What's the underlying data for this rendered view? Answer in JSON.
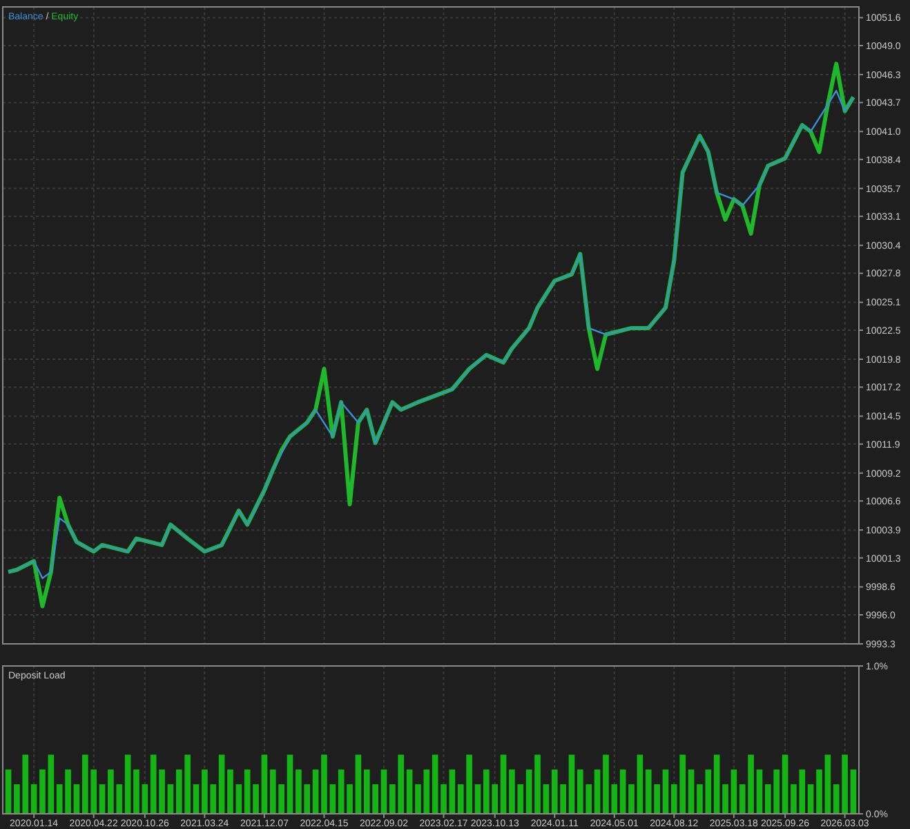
{
  "chart_data": [
    {
      "type": "line",
      "legend": "top left",
      "grid": true,
      "tick_labels": "y",
      "annotations": [
        "/"
      ],
      "ylim": [
        9993.3,
        10052.6
      ],
      "categories": [
        null,
        null,
        null,
        "2020.01.14",
        null,
        null,
        null,
        null,
        null,
        null,
        "2020.04.22",
        null,
        null,
        null,
        null,
        null,
        "2020.10.26",
        null,
        null,
        null,
        null,
        null,
        null,
        "2021.03.24",
        null,
        null,
        null,
        null,
        null,
        null,
        "2021.12.07",
        null,
        null,
        null,
        null,
        null,
        null,
        "2022.04.15",
        null,
        null,
        null,
        null,
        null,
        null,
        "2022.09.02",
        null,
        null,
        null,
        null,
        null,
        null,
        "2023.02.17",
        null,
        null,
        null,
        null,
        null,
        "2023.10.13",
        null,
        null,
        null,
        null,
        null,
        null,
        "2024.01.11",
        null,
        null,
        null,
        null,
        null,
        null,
        "2024.05.01",
        null,
        null,
        null,
        null,
        null,
        null,
        "2024.08.12",
        null,
        null,
        null,
        null,
        null,
        null,
        "2025.03.18",
        null,
        null,
        null,
        null,
        null,
        "2025.09.26",
        null,
        null,
        null,
        null,
        null,
        null,
        "2026.03.03",
        null
      ],
      "yticks": [
        9993.3,
        {
          "value": 9996.0,
          "label": "9996.0"
        },
        9998.6,
        10001.3,
        10003.9,
        10006.6,
        10009.2,
        10011.9,
        10014.5,
        10017.2,
        10019.8,
        10022.5,
        10025.1,
        10027.8,
        10030.4,
        10033.1,
        10035.7,
        10038.4,
        {
          "value": 10041.0,
          "label": "10041.0"
        },
        10043.7,
        10046.3,
        {
          "value": 10049.0,
          "label": "10049.0"
        },
        10051.6
      ],
      "series": [
        {
          "name": "Balance",
          "color": "#3a8fd6",
          "values": [
            10000.0,
            10000.2,
            null,
            10001.0,
            9999.4,
            10000.0,
            10005.0,
            10004.4,
            10002.8,
            null,
            10001.9,
            10002.5,
            null,
            null,
            10001.9,
            10003.1,
            null,
            null,
            10002.5,
            10004.4,
            null,
            10003.1,
            null,
            10001.9,
            null,
            10002.5,
            null,
            10005.7,
            10004.4,
            null,
            10007.6,
            10009.5,
            null,
            10012.6,
            null,
            10013.9,
            10015.1,
            null,
            10012.6,
            10015.8,
            null,
            10013.9,
            10015.1,
            10012.0,
            null,
            10015.8,
            10015.1,
            null,
            10015.8,
            null,
            10016.4,
            null,
            10017.0,
            null,
            10018.9,
            null,
            10020.2,
            null,
            10019.5,
            10020.8,
            null,
            10022.7,
            10024.6,
            null,
            10027.1,
            null,
            10027.7,
            10029.6,
            10022.7,
            null,
            10022.1,
            null,
            null,
            10022.7,
            null,
            10022.7,
            null,
            10024.6,
            10029.0,
            10037.2,
            null,
            10040.6,
            10039.1,
            10035.3,
            null,
            10034.7,
            10034.1,
            null,
            10036.0,
            10037.8,
            null,
            10038.5,
            null,
            10041.6,
            10041.0,
            null,
            10043.5,
            10044.8,
            10042.9,
            10044.2
          ]
        },
        {
          "name": "Equity",
          "color": "#1fb82a",
          "values": [
            10000.0,
            10000.2,
            null,
            10001.0,
            9996.8,
            10000.0,
            10006.9,
            10004.4,
            10002.8,
            null,
            10001.9,
            10002.5,
            null,
            null,
            10001.9,
            10003.1,
            null,
            null,
            10002.5,
            10004.4,
            null,
            10003.1,
            null,
            10001.9,
            null,
            10002.5,
            null,
            10005.7,
            10004.4,
            null,
            10007.6,
            10009.5,
            10011.3,
            10012.6,
            null,
            10013.9,
            10015.1,
            10018.9,
            10012.6,
            10015.8,
            10006.3,
            10013.9,
            10015.1,
            10012.0,
            null,
            10015.8,
            10015.1,
            null,
            10015.8,
            null,
            10016.4,
            null,
            10017.0,
            null,
            10018.9,
            null,
            10020.2,
            null,
            10019.5,
            10020.8,
            null,
            10022.7,
            10024.6,
            null,
            10027.1,
            null,
            10027.7,
            10029.6,
            10022.7,
            10018.9,
            10022.1,
            null,
            null,
            10022.7,
            null,
            10022.7,
            null,
            10024.6,
            10029.0,
            10037.2,
            null,
            10040.6,
            10039.1,
            10035.3,
            10032.8,
            10034.7,
            10034.1,
            10031.5,
            10036.0,
            10037.8,
            null,
            10038.5,
            null,
            10041.6,
            10041.0,
            10039.1,
            10043.5,
            10047.3,
            10042.9,
            10044.2
          ]
        }
      ]
    },
    {
      "type": "bar",
      "title": "Deposit Load",
      "grid": "x",
      "ylim": [
        0,
        1
      ],
      "color": "#13b413",
      "categories": [
        null,
        null,
        null,
        "2020.01.14",
        null,
        null,
        null,
        null,
        null,
        null,
        "2020.04.22",
        null,
        null,
        null,
        null,
        null,
        "2020.10.26",
        null,
        null,
        null,
        null,
        null,
        null,
        "2021.03.24",
        null,
        null,
        null,
        null,
        null,
        null,
        "2021.12.07",
        null,
        null,
        null,
        null,
        null,
        null,
        "2022.04.15",
        null,
        null,
        null,
        null,
        null,
        null,
        "2022.09.02",
        null,
        null,
        null,
        null,
        null,
        null,
        "2023.02.17",
        null,
        null,
        null,
        null,
        null,
        "2023.10.13",
        null,
        null,
        null,
        null,
        null,
        null,
        "2024.01.11",
        null,
        null,
        null,
        null,
        null,
        null,
        "2024.05.01",
        null,
        null,
        null,
        null,
        null,
        null,
        "2024.08.12",
        null,
        null,
        null,
        null,
        null,
        null,
        "2025.03.18",
        null,
        null,
        null,
        null,
        null,
        "2025.09.26",
        null,
        null,
        null,
        null,
        null,
        null,
        "2026.03.03",
        null
      ],
      "yticks": [
        {
          "value": 0,
          "label": "0.0%"
        },
        {
          "value": 1,
          "label": "1.0%"
        }
      ],
      "values": [
        0.3,
        0.2,
        0.4,
        0.2,
        0.3,
        0.4,
        0.2,
        0.3,
        0.2,
        0.4,
        0.3,
        0.2,
        0.3,
        0.2,
        0.4,
        0.3,
        0.2,
        0.4,
        0.3,
        0.2,
        0.3,
        0.4,
        0.2,
        0.3,
        0.2,
        0.4,
        0.3,
        0.2,
        0.3,
        0.2,
        0.4,
        0.3,
        0.2,
        0.4,
        0.3,
        0.2,
        0.3,
        0.4,
        0.2,
        0.3,
        0.2,
        0.4,
        0.3,
        0.2,
        0.3,
        0.2,
        0.4,
        0.3,
        0.2,
        0.3,
        0.4,
        0.2,
        0.3,
        0.2,
        0.4,
        0.2,
        0.3,
        0.2,
        0.4,
        0.3,
        0.2,
        0.3,
        0.4,
        0.2,
        0.3,
        0.2,
        0.4,
        0.3,
        0.2,
        0.3,
        0.4,
        0.2,
        0.3,
        0.2,
        0.4,
        0.3,
        0.2,
        0.3,
        0.2,
        0.4,
        0.3,
        0.2,
        0.3,
        0.4,
        0.2,
        0.3,
        0.2,
        0.4,
        0.3,
        0.2,
        0.3,
        0.4,
        0.2,
        0.3,
        0.2,
        0.3,
        0.4,
        0.2,
        0.4,
        0.3
      ]
    }
  ]
}
